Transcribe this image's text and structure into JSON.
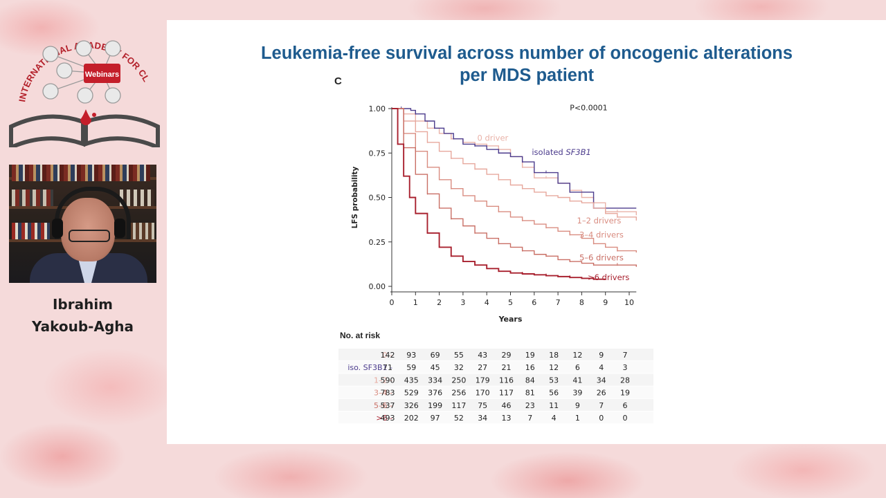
{
  "logo": {
    "arc_text": "INTERNATIONAL ACADEMY FOR CLINICAL HEMATOLOGY",
    "badge": "Webinars"
  },
  "speaker": {
    "name_line1": "Ibrahim",
    "name_line2": "Yakoub-Agha"
  },
  "slide": {
    "title_line1": "Leukemia-free survival across number of oncogenic alterations",
    "title_line2": "per MDS patient",
    "panel_letter": "C"
  },
  "colors": {
    "title": "#1e5b8e",
    "drivers_0": "#e9b2a8",
    "sf3b1": "#4b3b8c",
    "drivers_1_2": "#e7a89d",
    "drivers_3_4": "#d98c80",
    "drivers_5_6": "#c96f65",
    "drivers_gt6": "#a8202e"
  },
  "chart_data": {
    "type": "line",
    "xlabel": "Years",
    "ylabel": "LFS probability",
    "xlim": [
      0,
      10
    ],
    "ylim": [
      0,
      1
    ],
    "xticks": [
      0,
      1,
      2,
      3,
      4,
      5,
      6,
      7,
      8,
      9,
      10
    ],
    "yticks": [
      "0.00",
      "0.25",
      "0.50",
      "0.75",
      "1.00"
    ],
    "annotation": "P<0.0001",
    "series": [
      {
        "name": "0 driver",
        "color": "#e9b2a8",
        "x": [
          0,
          0.5,
          1,
          1.5,
          2,
          2.5,
          3,
          3.5,
          4,
          4.5,
          5,
          5.5,
          6,
          6.5,
          7,
          7.5,
          8,
          8.5,
          9,
          9.5,
          10.3
        ],
        "y": [
          1,
          0.97,
          0.93,
          0.89,
          0.86,
          0.83,
          0.81,
          0.8,
          0.79,
          0.77,
          0.73,
          0.67,
          0.61,
          0.61,
          0.58,
          0.54,
          0.5,
          0.47,
          0.42,
          0.42,
          0.4
        ]
      },
      {
        "name": "isolated SF3B1",
        "color": "#4b3b8c",
        "x": [
          0,
          0.4,
          0.8,
          1.0,
          1.4,
          1.8,
          2.2,
          2.6,
          3.0,
          3.5,
          4.0,
          4.5,
          5.0,
          5.5,
          6.0,
          6.5,
          7.0,
          7.5,
          8.0,
          8.5,
          9.0,
          10.3
        ],
        "y": [
          1,
          1,
          0.99,
          0.97,
          0.93,
          0.89,
          0.86,
          0.83,
          0.8,
          0.79,
          0.77,
          0.75,
          0.73,
          0.7,
          0.64,
          0.64,
          0.58,
          0.53,
          0.53,
          0.44,
          0.44,
          0.44
        ]
      },
      {
        "name": "1–2 drivers",
        "color": "#e7a89d",
        "x": [
          0,
          0.5,
          1,
          1.5,
          2,
          2.5,
          3,
          3.5,
          4,
          4.5,
          5,
          5.5,
          6,
          6.5,
          7,
          7.5,
          8,
          8.5,
          9,
          9.5,
          10.3
        ],
        "y": [
          1,
          0.93,
          0.87,
          0.81,
          0.76,
          0.72,
          0.69,
          0.66,
          0.63,
          0.6,
          0.57,
          0.55,
          0.53,
          0.51,
          0.5,
          0.48,
          0.47,
          0.44,
          0.41,
          0.39,
          0.37
        ]
      },
      {
        "name": "3–4 drivers",
        "color": "#d98c80",
        "x": [
          0,
          0.5,
          1,
          1.5,
          2,
          2.5,
          3,
          3.5,
          4,
          4.5,
          5,
          5.5,
          6,
          6.5,
          7,
          7.5,
          8,
          8.5,
          9,
          9.5,
          10.3
        ],
        "y": [
          1,
          0.86,
          0.76,
          0.67,
          0.6,
          0.55,
          0.51,
          0.48,
          0.45,
          0.42,
          0.39,
          0.37,
          0.35,
          0.33,
          0.31,
          0.29,
          0.27,
          0.24,
          0.22,
          0.2,
          0.19
        ]
      },
      {
        "name": "5–6 drivers",
        "color": "#c96f65",
        "x": [
          0,
          0.5,
          1,
          1.5,
          2,
          2.5,
          3,
          3.5,
          4,
          4.5,
          5,
          5.5,
          6,
          6.5,
          7,
          7.5,
          8,
          8.5,
          9,
          9.5,
          10.3
        ],
        "y": [
          1,
          0.78,
          0.63,
          0.52,
          0.44,
          0.38,
          0.34,
          0.3,
          0.27,
          0.24,
          0.22,
          0.2,
          0.18,
          0.17,
          0.15,
          0.14,
          0.13,
          0.12,
          0.12,
          0.12,
          0.11
        ]
      },
      {
        "name": ">6 drivers",
        "color": "#a8202e",
        "x": [
          0,
          0.25,
          0.5,
          0.75,
          1,
          1.5,
          2,
          2.5,
          3,
          3.5,
          4,
          4.5,
          5,
          5.5,
          6,
          6.5,
          7,
          7.5,
          8,
          8.5,
          9
        ],
        "y": [
          1,
          0.8,
          0.62,
          0.5,
          0.41,
          0.3,
          0.22,
          0.17,
          0.14,
          0.12,
          0.1,
          0.085,
          0.075,
          0.07,
          0.065,
          0.06,
          0.055,
          0.05,
          0.045,
          0.04,
          0.04
        ]
      }
    ],
    "series_labels": [
      {
        "text": "0 driver",
        "x": 3.6,
        "y": 0.82,
        "color": "#e9b2a8"
      },
      {
        "text": "isolated ",
        "italic": "SF3B1",
        "x": 5.9,
        "y": 0.74,
        "color": "#4b3b8c"
      },
      {
        "text": "1–2 drivers",
        "x": 7.8,
        "y": 0.355,
        "color": "#d98c80"
      },
      {
        "text": "3–4 drivers",
        "x": 7.9,
        "y": 0.275,
        "color": "#d98c80"
      },
      {
        "text": "5–6 drivers",
        "x": 7.9,
        "y": 0.145,
        "color": "#c96f65"
      },
      {
        "text": ">6 drivers",
        "x": 8.25,
        "y": 0.035,
        "color": "#a8202e"
      }
    ],
    "risk_table": {
      "title": "No. at risk",
      "time_points": [
        0,
        1,
        2,
        3,
        4,
        5,
        6,
        7,
        8,
        9,
        10
      ],
      "rows": [
        {
          "label": "0",
          "color": "#e9b2a8",
          "values": [
            142,
            93,
            69,
            55,
            43,
            29,
            19,
            18,
            12,
            9,
            7
          ]
        },
        {
          "label": "iso. SF3B1",
          "color": "#4b3b8c",
          "values": [
            71,
            59,
            45,
            32,
            27,
            21,
            16,
            12,
            6,
            4,
            3
          ]
        },
        {
          "label": "1–2",
          "color": "#e7a89d",
          "values": [
            590,
            435,
            334,
            250,
            179,
            116,
            84,
            53,
            41,
            34,
            28
          ]
        },
        {
          "label": "3–4",
          "color": "#d98c80",
          "values": [
            783,
            529,
            376,
            256,
            170,
            117,
            81,
            56,
            39,
            26,
            19
          ]
        },
        {
          "label": "5–6",
          "color": "#c96f65",
          "values": [
            537,
            326,
            199,
            117,
            75,
            46,
            23,
            11,
            9,
            7,
            6
          ]
        },
        {
          "label": ">6",
          "color": "#a8202e",
          "values": [
            493,
            202,
            97,
            52,
            34,
            13,
            7,
            4,
            1,
            0,
            0
          ]
        }
      ]
    }
  }
}
